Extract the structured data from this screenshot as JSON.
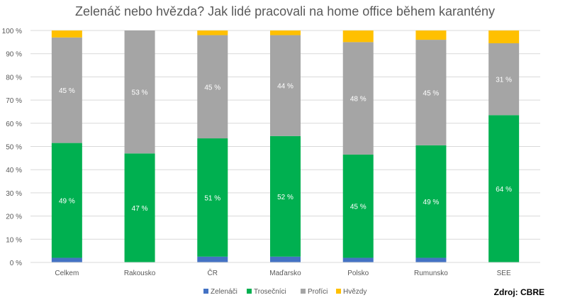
{
  "chart_data": {
    "type": "bar",
    "stacked": true,
    "title": "Zelenáč nebo hvězda? Jak lidé pracovali na home office během karantény",
    "categories": [
      "Celkem",
      "Rakousko",
      "ČR",
      "Maďarsko",
      "Polsko",
      "Rumunsko",
      "SEE"
    ],
    "series": [
      {
        "name": "Zelenáči",
        "color": "#4472c4",
        "values": [
          2,
          0,
          2.5,
          2.5,
          2,
          2,
          0
        ],
        "labels": [
          "",
          "",
          "",
          "",
          "",
          "",
          ""
        ]
      },
      {
        "name": "Trosečníci",
        "color": "#00b050",
        "values": [
          49.5,
          47,
          51,
          52,
          44.5,
          48.5,
          63.5
        ],
        "labels": [
          "49 %",
          "47 %",
          "51 %",
          "52 %",
          "45 %",
          "49 %",
          "64 %"
        ]
      },
      {
        "name": "Profíci",
        "color": "#a5a5a5",
        "values": [
          45.5,
          53,
          44.5,
          43.5,
          48.5,
          45.5,
          31
        ],
        "labels": [
          "45 %",
          "53 %",
          "45 %",
          "44 %",
          "48 %",
          "45 %",
          "31 %"
        ]
      },
      {
        "name": "Hvězdy",
        "color": "#ffc000",
        "values": [
          3,
          0,
          2,
          2,
          5,
          4,
          5.5
        ],
        "labels": [
          "",
          "",
          "",
          "",
          "",
          "",
          ""
        ]
      }
    ],
    "y_ticks": [
      "0 %",
      "10 %",
      "20 %",
      "30 %",
      "40 %",
      "50 %",
      "60 %",
      "70 %",
      "80 %",
      "90 %",
      "100 %"
    ],
    "ylim": [
      0,
      100
    ],
    "grid": true,
    "legend": "bottom",
    "source": "Zdroj: CBRE"
  }
}
